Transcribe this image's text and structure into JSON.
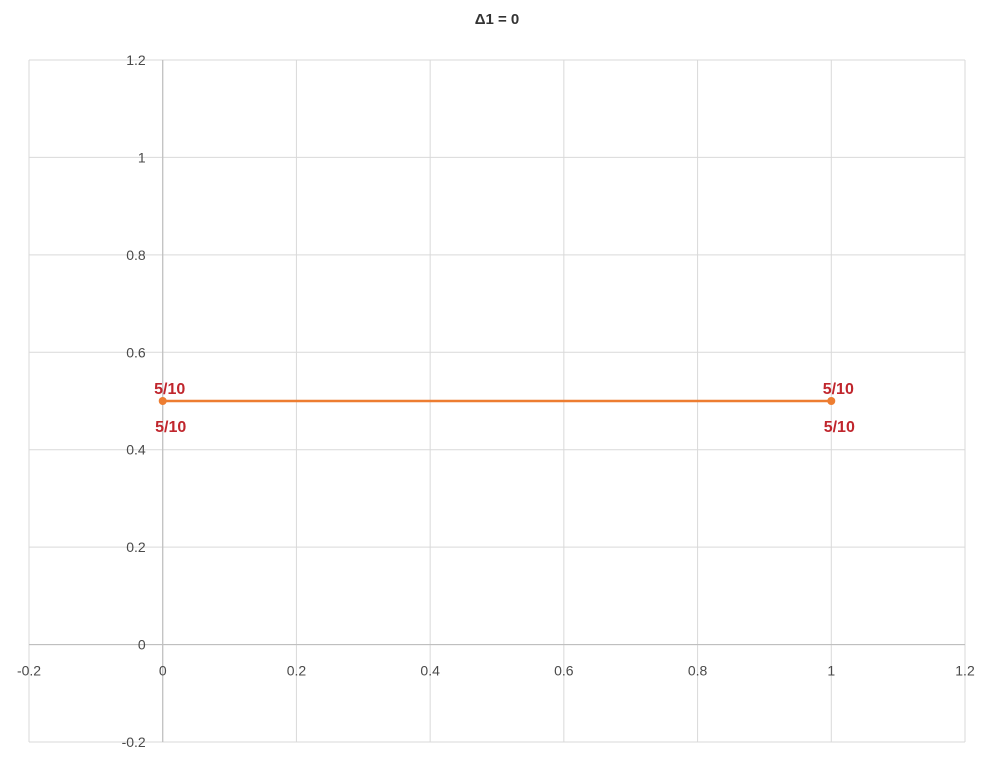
{
  "chart_data": {
    "type": "scatter",
    "title": "Δ1 = 0",
    "xlabel": "",
    "ylabel": "",
    "xlim": [
      -0.2,
      1.2
    ],
    "ylim": [
      -0.2,
      1.2
    ],
    "x_ticks": [
      "-0.2",
      "0",
      "0.2",
      "0.4",
      "0.6",
      "0.8",
      "1",
      "1.2"
    ],
    "y_ticks": [
      "-0.2",
      "0",
      "0.2",
      "0.4",
      "0.6",
      "0.8",
      "1",
      "1.2"
    ],
    "grid": true,
    "legend": "none",
    "series": [
      {
        "x": [
          0,
          1
        ],
        "y": [
          0.5,
          0.5
        ],
        "color": "#ED7D31",
        "marker": "circle",
        "line": true
      }
    ],
    "annotations": [
      {
        "x": 0,
        "y": 0.5,
        "above": "5/10",
        "below": "5/10"
      },
      {
        "x": 1,
        "y": 0.5,
        "above": "5/10",
        "below": "5/10"
      }
    ],
    "label_color": "#C0262D",
    "grid_color": "#D9D9D9",
    "axis_color": "#BFBFBF"
  }
}
